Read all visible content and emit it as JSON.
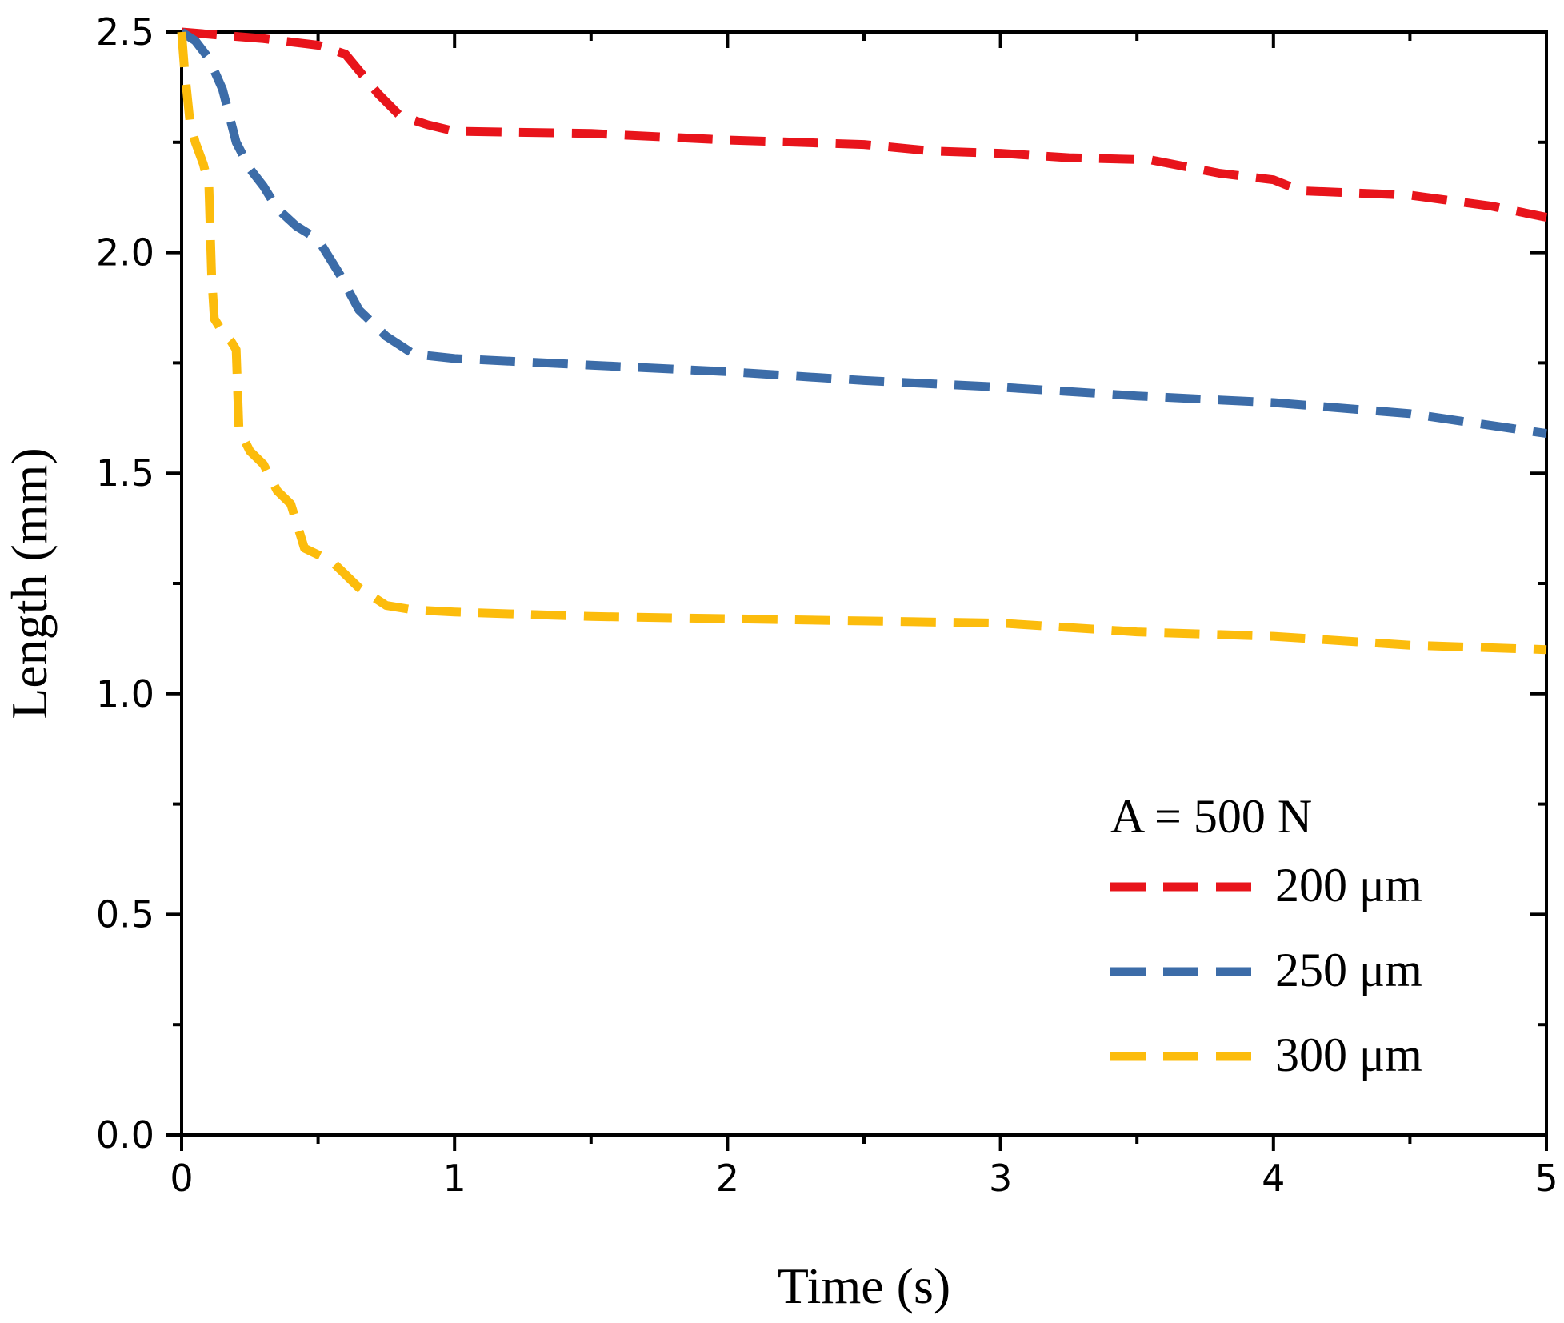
{
  "chart_data": {
    "type": "line",
    "title": "",
    "xlabel": "Time (s)",
    "ylabel": "Length (mm)",
    "xlim": [
      0,
      5
    ],
    "ylim": [
      0,
      2.5
    ],
    "x_ticks": [
      0,
      1,
      2,
      3,
      4,
      5
    ],
    "x_tick_labels": [
      "0",
      "1",
      "2",
      "3",
      "4",
      "5"
    ],
    "y_ticks": [
      0.0,
      0.5,
      1.0,
      1.5,
      2.0,
      2.5
    ],
    "y_tick_labels": [
      "0.0",
      "0.5",
      "1.0",
      "1.5",
      "2.0",
      "2.5"
    ],
    "grid": false,
    "legend": {
      "title": "A = 500 N",
      "position": "bottom-right"
    },
    "series": [
      {
        "name": "200 μm",
        "color": "#e8141b",
        "x": [
          0,
          0.1,
          0.3,
          0.5,
          0.6,
          0.72,
          0.8,
          0.9,
          1.0,
          1.5,
          2.0,
          2.5,
          2.75,
          3.0,
          3.25,
          3.55,
          3.8,
          4.0,
          4.1,
          4.5,
          4.8,
          5.0
        ],
        "y": [
          2.5,
          2.495,
          2.485,
          2.47,
          2.45,
          2.36,
          2.31,
          2.29,
          2.275,
          2.27,
          2.255,
          2.245,
          2.23,
          2.225,
          2.215,
          2.21,
          2.18,
          2.165,
          2.14,
          2.13,
          2.105,
          2.08
        ]
      },
      {
        "name": "250 μm",
        "color": "#3c6ca8",
        "x": [
          0,
          0.05,
          0.1,
          0.15,
          0.2,
          0.25,
          0.3,
          0.35,
          0.42,
          0.5,
          0.58,
          0.65,
          0.75,
          0.85,
          1.0,
          1.5,
          2.0,
          2.5,
          3.0,
          3.5,
          4.0,
          4.5,
          5.0
        ],
        "y": [
          2.5,
          2.48,
          2.44,
          2.37,
          2.25,
          2.19,
          2.15,
          2.1,
          2.06,
          2.03,
          1.95,
          1.87,
          1.81,
          1.77,
          1.76,
          1.745,
          1.73,
          1.71,
          1.695,
          1.675,
          1.66,
          1.635,
          1.59
        ]
      },
      {
        "name": "300 μm",
        "color": "#fcbc0c",
        "x": [
          0,
          0.01,
          0.03,
          0.05,
          0.08,
          0.1,
          0.11,
          0.12,
          0.15,
          0.18,
          0.2,
          0.21,
          0.25,
          0.3,
          0.35,
          0.4,
          0.45,
          0.55,
          0.65,
          0.75,
          0.85,
          1.0,
          1.5,
          2.0,
          2.5,
          3.0,
          3.5,
          4.0,
          4.5,
          5.0
        ],
        "y": [
          2.5,
          2.42,
          2.3,
          2.25,
          2.2,
          2.15,
          1.95,
          1.85,
          1.82,
          1.8,
          1.78,
          1.6,
          1.55,
          1.52,
          1.46,
          1.43,
          1.33,
          1.3,
          1.24,
          1.2,
          1.19,
          1.185,
          1.175,
          1.17,
          1.165,
          1.16,
          1.14,
          1.13,
          1.11,
          1.1
        ]
      }
    ]
  }
}
